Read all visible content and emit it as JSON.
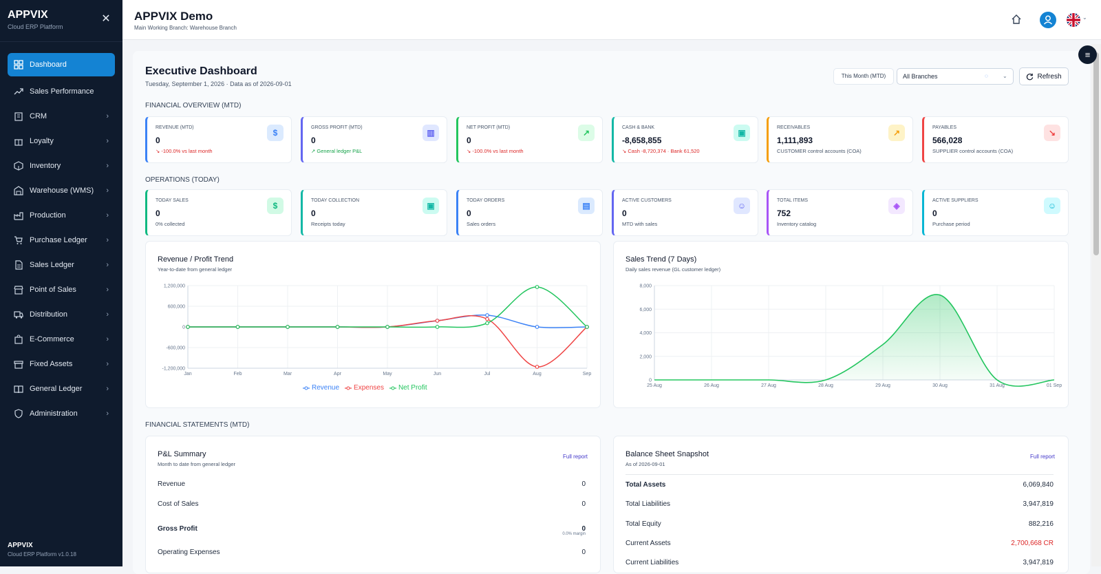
{
  "sidebar": {
    "brand": "APPVIX",
    "brand_sub": "Cloud ERP Platform",
    "items": [
      {
        "label": "Dashboard"
      },
      {
        "label": "Sales Performance"
      },
      {
        "label": "CRM"
      },
      {
        "label": "Loyalty"
      },
      {
        "label": "Inventory"
      },
      {
        "label": "Warehouse (WMS)"
      },
      {
        "label": "Production"
      },
      {
        "label": "Purchase Ledger"
      },
      {
        "label": "Sales Ledger"
      },
      {
        "label": "Point of Sales"
      },
      {
        "label": "Distribution"
      },
      {
        "label": "E-Commerce"
      },
      {
        "label": "Fixed Assets"
      },
      {
        "label": "General Ledger"
      },
      {
        "label": "Administration"
      }
    ],
    "footer_brand": "APPVIX",
    "footer_sub": "Cloud ERP Platform v1.0.18"
  },
  "topbar": {
    "title": "APPVIX Demo",
    "subtitle": "Main Working Branch: Warehouse Branch"
  },
  "dashboard": {
    "title": "Executive Dashboard",
    "subtitle": "Tuesday, September 1, 2026 · Data as of 2026-09-01",
    "period_button": "This Month (MTD)",
    "branch_select": "All Branches",
    "refresh_label": "Refresh"
  },
  "sections": {
    "financial": "FINANCIAL OVERVIEW (MTD)",
    "operations": "OPERATIONS (TODAY)",
    "statements": "FINANCIAL STATEMENTS (MTD)"
  },
  "financial_cards": [
    {
      "label": "REVENUE (MTD)",
      "value": "0",
      "note": "↘ -100.0% vs last month",
      "icon": "dollar-icon",
      "icon_glyph": "$",
      "color": "#3b82f6",
      "icon_bg": "#dbeafe"
    },
    {
      "label": "GROSS PROFIT (MTD)",
      "value": "0",
      "note": "↗ General ledger P&L",
      "icon": "bar-chart-icon",
      "icon_glyph": "▥",
      "color": "#6366f1",
      "icon_bg": "#e0e7ff"
    },
    {
      "label": "NET PROFIT (MTD)",
      "value": "0",
      "note": "↘ -100.0% vs last month",
      "icon": "trend-up-icon",
      "icon_glyph": "↗",
      "color": "#22c55e",
      "icon_bg": "#dcfce7"
    },
    {
      "label": "CASH & BANK",
      "value": "-8,658,855",
      "note": "↘ Cash -8,720,374 · Bank 61,520",
      "icon": "wallet-icon",
      "icon_glyph": "▣",
      "color": "#14b8a6",
      "icon_bg": "#ccfbf1"
    },
    {
      "label": "RECEIVABLES",
      "value": "1,111,893",
      "note": "CUSTOMER control accounts (COA)",
      "icon": "arrow-up-right-icon",
      "icon_glyph": "↗",
      "color": "#f59e0b",
      "icon_bg": "#fef3c7"
    },
    {
      "label": "PAYABLES",
      "value": "566,028",
      "note": "SUPPLIER control accounts (COA)",
      "icon": "arrow-down-right-icon",
      "icon_glyph": "↘",
      "color": "#ef4444",
      "icon_bg": "#fee2e2"
    }
  ],
  "operations_cards": [
    {
      "label": "TODAY SALES",
      "value": "0",
      "note": "0% collected",
      "icon": "dollar-icon",
      "icon_glyph": "$",
      "color": "#10b981",
      "icon_bg": "#d1fae5"
    },
    {
      "label": "TODAY COLLECTION",
      "value": "0",
      "note": "Receipts today",
      "icon": "wallet-icon",
      "icon_glyph": "▣",
      "color": "#14b8a6",
      "icon_bg": "#ccfbf1"
    },
    {
      "label": "TODAY ORDERS",
      "value": "0",
      "note": "Sales orders",
      "icon": "document-icon",
      "icon_glyph": "▤",
      "color": "#3b82f6",
      "icon_bg": "#dbeafe"
    },
    {
      "label": "ACTIVE CUSTOMERS",
      "value": "0",
      "note": "MTD with sales",
      "icon": "users-icon",
      "icon_glyph": "☺",
      "color": "#6366f1",
      "icon_bg": "#e0e7ff"
    },
    {
      "label": "TOTAL ITEMS",
      "value": "752",
      "note": "Inventory catalog",
      "icon": "cube-icon",
      "icon_glyph": "◈",
      "color": "#a855f7",
      "icon_bg": "#f3e8ff"
    },
    {
      "label": "ACTIVE SUPPLIERS",
      "value": "0",
      "note": "Purchase period",
      "icon": "users-icon",
      "icon_glyph": "☺",
      "color": "#06b6d4",
      "icon_bg": "#cffafe"
    }
  ],
  "revenue_chart": {
    "title": "Revenue / Profit Trend",
    "subtitle": "Year-to-date from general ledger"
  },
  "sales_chart": {
    "title": "Sales Trend (7 Days)",
    "subtitle": "Daily sales revenue (GL customer ledger)"
  },
  "pl_summary": {
    "title": "P&L Summary",
    "subtitle": "Month to date from general ledger",
    "link": "Full report",
    "rows": [
      {
        "label": "Revenue",
        "value": "0"
      },
      {
        "label": "Cost of Sales",
        "value": "0"
      },
      {
        "label": "Gross Profit",
        "value": "0",
        "extra": "0.0% margin"
      },
      {
        "label": "Operating Expenses",
        "value": "0"
      }
    ]
  },
  "balance_sheet": {
    "title": "Balance Sheet Snapshot",
    "subtitle": "As of 2026-09-01",
    "link": "Full report",
    "rows": [
      {
        "label": "Total Assets",
        "value": "6,069,840"
      },
      {
        "label": "Total Liabilities",
        "value": "3,947,819"
      },
      {
        "label": "Total Equity",
        "value": "882,216"
      },
      {
        "label": "Current Assets",
        "value": "2,700,668 CR"
      },
      {
        "label": "Current Liabilities",
        "value": "3,947,819"
      }
    ]
  },
  "chart_data": [
    {
      "type": "line",
      "x": [
        "Jan",
        "Feb",
        "Mar",
        "Apr",
        "May",
        "Jun",
        "Jul",
        "Aug",
        "Sep"
      ],
      "yticks": [
        "1,200,000",
        "600,000",
        "0",
        "-600,000",
        "-1,200,000"
      ],
      "ylim": [
        -1200000,
        1200000
      ],
      "series": [
        {
          "name": "Revenue",
          "color": "#3b82f6",
          "values": [
            0,
            0,
            0,
            0,
            0,
            180000,
            340000,
            0,
            0
          ]
        },
        {
          "name": "Expenses",
          "color": "#ef4444",
          "values": [
            0,
            0,
            0,
            0,
            0,
            180000,
            230000,
            -1160000,
            0
          ]
        },
        {
          "name": "Net Profit",
          "color": "#22c55e",
          "values": [
            0,
            0,
            0,
            0,
            0,
            0,
            110000,
            1160000,
            0
          ]
        }
      ],
      "legend": "bottom"
    },
    {
      "type": "area",
      "x": [
        "25 Aug",
        "26 Aug",
        "27 Aug",
        "28 Aug",
        "29 Aug",
        "30 Aug",
        "31 Aug",
        "01 Sep"
      ],
      "yticks": [
        "8,000",
        "6,000",
        "4,000",
        "2,000",
        "0"
      ],
      "ylim": [
        0,
        8000
      ],
      "series": [
        {
          "color": "#22c55e",
          "values": [
            0,
            0,
            0,
            0,
            3000,
            7200,
            0,
            0
          ]
        }
      ]
    }
  ]
}
